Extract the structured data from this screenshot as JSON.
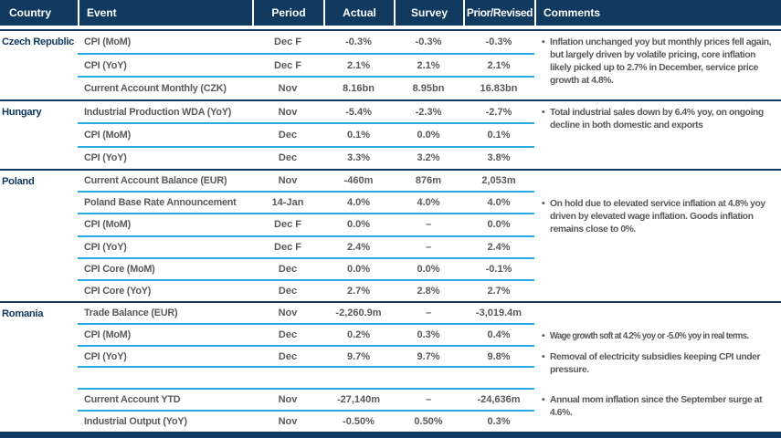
{
  "colors": {
    "navy": "#103A60",
    "light_blue": "#29ABE2",
    "text_gray": "#58595B",
    "header_text": "#FFFFFF"
  },
  "header": {
    "columns": [
      "Country",
      "Event",
      "Period",
      "Actual",
      "Survey",
      "Prior/Revised",
      "Comments"
    ]
  },
  "sections": [
    {
      "country": "Czech Republic",
      "rows": [
        {
          "event": "CPI (MoM)",
          "period": "Dec F",
          "actual": "-0.3%",
          "survey": "-0.3%",
          "prior": "-0.3%"
        },
        {
          "event": "CPI (YoY)",
          "period": "Dec F",
          "actual": "2.1%",
          "survey": "2.1%",
          "prior": "2.1%"
        },
        {
          "event": "Current Account Monthly (CZK)",
          "period": "Nov",
          "actual": "8.16bn",
          "survey": "8.95bn",
          "prior": "16.83bn"
        }
      ],
      "comments": [
        {
          "row": 0,
          "text": "Inflation unchanged yoy but monthly prices fell again, but largely driven by volatile pricing, core inflation likely picked up to 2.7% in December, service price growth at 4.8%."
        }
      ]
    },
    {
      "country": "Hungary",
      "rows": [
        {
          "event": "Industrial Production WDA (YoY)",
          "period": "Nov",
          "actual": "-5.4%",
          "survey": "-2.3%",
          "prior": "-2.7%"
        },
        {
          "event": "CPI (MoM)",
          "period": "Dec",
          "actual": "0.1%",
          "survey": "0.0%",
          "prior": "0.1%"
        },
        {
          "event": "CPI (YoY)",
          "period": "Dec",
          "actual": "3.3%",
          "survey": "3.2%",
          "prior": "3.8%"
        }
      ],
      "comments": [
        {
          "row": 0,
          "text": "Total industrial sales down by 6.4% yoy, on ongoing decline in both domestic and exports"
        }
      ]
    },
    {
      "country": "Poland",
      "rows": [
        {
          "event": "Current Account Balance (EUR)",
          "period": "Nov",
          "actual": "-460m",
          "survey": "876m",
          "prior": "2,053m"
        },
        {
          "event": "Poland Base Rate Announcement",
          "period": "14-Jan",
          "actual": "4.0%",
          "survey": "4.0%",
          "prior": "4.0%"
        },
        {
          "event": "CPI (MoM)",
          "period": "Dec F",
          "actual": "0.0%",
          "survey": "–",
          "prior": "0.0%"
        },
        {
          "event": "CPI (YoY)",
          "period": "Dec F",
          "actual": "2.4%",
          "survey": "–",
          "prior": "2.4%"
        },
        {
          "event": "CPI Core (MoM)",
          "period": "Dec",
          "actual": "0.0%",
          "survey": "0.0%",
          "prior": "-0.1%"
        },
        {
          "event": "CPI Core (YoY)",
          "period": "Dec",
          "actual": "2.7%",
          "survey": "2.8%",
          "prior": "2.7%"
        }
      ],
      "comments": [
        {
          "row": 1,
          "text": "On hold due to elevated service inflation at 4.8% yoy driven by elevated wage inflation. Goods inflation remains close to 0%."
        }
      ]
    },
    {
      "country": "Romania",
      "rows": [
        {
          "event": "Trade Balance (EUR)",
          "period": "Nov",
          "actual": "-2,260.9m",
          "survey": "–",
          "prior": "-3,019.4m"
        },
        {
          "event": "CPI (MoM)",
          "period": "Dec",
          "actual": "0.2%",
          "survey": "0.3%",
          "prior": "0.4%"
        },
        {
          "event": "CPI (YoY)",
          "period": "Dec",
          "actual": "9.7%",
          "survey": "9.7%",
          "prior": "9.8%"
        },
        {
          "event": "",
          "period": "",
          "actual": "",
          "survey": "",
          "prior": ""
        },
        {
          "event": "Current Account YTD",
          "period": "Nov",
          "actual": "-27,140m",
          "survey": "–",
          "prior": "-24,636m"
        },
        {
          "event": "Industrial Output (YoY)",
          "period": "Nov",
          "actual": "-0.50%",
          "survey": "0.50%",
          "prior": "0.3%"
        }
      ],
      "comments": [
        {
          "row": 1,
          "text": "Wage growth soft at 4.2% yoy or -5.0% yoy in real terms."
        },
        {
          "row": 2,
          "text": "Removal of electricity subsidies keeping CPI under pressure."
        },
        {
          "row": 4,
          "text": "Annual mom inflation since the September surge at 4.6%."
        }
      ]
    }
  ]
}
